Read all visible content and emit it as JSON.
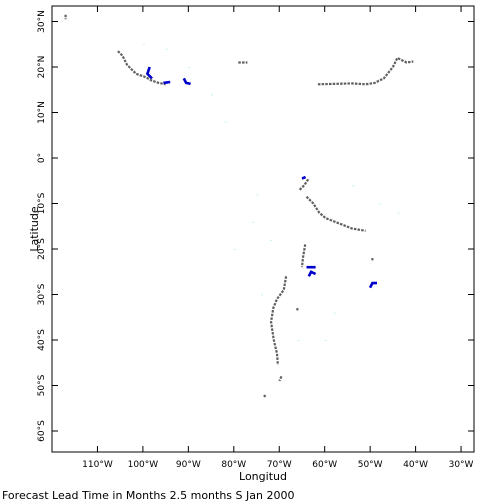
{
  "map": {
    "x_axis_title": "Longitud",
    "y_axis_title": "Latitude",
    "lon_ticks": [
      "110°W",
      "100°W",
      "90°W",
      "80°W",
      "70°W",
      "60°W",
      "50°W",
      "40°W",
      "30°W"
    ],
    "lat_ticks": [
      "30°N",
      "20°N",
      "10°N",
      "0°",
      "10°S",
      "20°S",
      "30°S",
      "40°S",
      "50°S",
      "60°S"
    ],
    "caption": "Forecast Lead Time in Months 2.5 months S Jan 2000",
    "colors": {
      "coast": "#606060",
      "highlight": "#0000cc",
      "faint": "#c8f0f0",
      "frame": "#000000"
    },
    "coastline": [
      [
        [
          -105.5,
          23.5
        ],
        [
          -104.5,
          22.5
        ],
        [
          -103.5,
          20.5
        ],
        [
          -102.5,
          19.5
        ],
        [
          -101.5,
          18.5
        ],
        [
          -99.5,
          17.8
        ],
        [
          -98,
          17
        ],
        [
          -96.5,
          16.5
        ],
        [
          -95,
          16.2
        ]
      ],
      [
        [
          -79,
          21
        ],
        [
          -77,
          21
        ]
      ],
      [
        [
          -61.5,
          16.2
        ],
        [
          -54,
          16.4
        ],
        [
          -51,
          16.2
        ],
        [
          -49,
          16.5
        ],
        [
          -47,
          17.5
        ],
        [
          -45,
          20
        ],
        [
          -44,
          22
        ],
        [
          -42,
          21
        ],
        [
          -40.5,
          21.2
        ]
      ],
      [
        [
          -65.5,
          -7
        ],
        [
          -64.5,
          -6
        ],
        [
          -63.5,
          -4.5
        ]
      ],
      [
        [
          -64,
          -8.5
        ],
        [
          -62.5,
          -10
        ],
        [
          -61.2,
          -12
        ],
        [
          -59.8,
          -13.2
        ],
        [
          -57,
          -14.3
        ],
        [
          -54,
          -15.5
        ],
        [
          -51,
          -16
        ]
      ],
      [
        [
          -64.3,
          -19
        ],
        [
          -64.8,
          -22
        ],
        [
          -65,
          -24
        ]
      ],
      [
        [
          -68.5,
          -26
        ],
        [
          -69,
          -29
        ],
        [
          -70.5,
          -31
        ],
        [
          -71.3,
          -33
        ],
        [
          -71.8,
          -36
        ],
        [
          -71.5,
          -38
        ],
        [
          -71.2,
          -40
        ],
        [
          -70.5,
          -43
        ],
        [
          -70.3,
          -45.5
        ]
      ],
      [
        [
          -69.5,
          -48
        ],
        [
          -70,
          -49
        ]
      ],
      [
        [
          -73,
          -52.5
        ],
        [
          -73.5,
          -52
        ]
      ],
      [
        [
          -117,
          31.5
        ],
        [
          -117,
          30.5
        ]
      ],
      [
        [
          -66,
          -33
        ],
        [
          -66,
          -33.5
        ]
      ],
      [
        [
          -49.5,
          -22
        ],
        [
          -49.5,
          -22.5
        ]
      ]
    ],
    "highlights": [
      [
        [
          -98.5,
          20
        ],
        [
          -99,
          18.5
        ],
        [
          -98,
          17.5
        ]
      ],
      [
        [
          -95.5,
          16.5
        ],
        [
          -94,
          16.7
        ]
      ],
      [
        [
          -91,
          17.5
        ],
        [
          -90.5,
          16.5
        ],
        [
          -89.5,
          16.3
        ]
      ],
      [
        [
          -65,
          -4.5
        ],
        [
          -64.2,
          -4.2
        ]
      ],
      [
        [
          -64,
          -24
        ],
        [
          -62,
          -24
        ]
      ],
      [
        [
          -63.5,
          -26
        ],
        [
          -63,
          -25
        ],
        [
          -62,
          -25.5
        ]
      ],
      [
        [
          -50,
          -28.5
        ],
        [
          -49.5,
          -27.5
        ],
        [
          -48.5,
          -27.5
        ]
      ]
    ]
  }
}
